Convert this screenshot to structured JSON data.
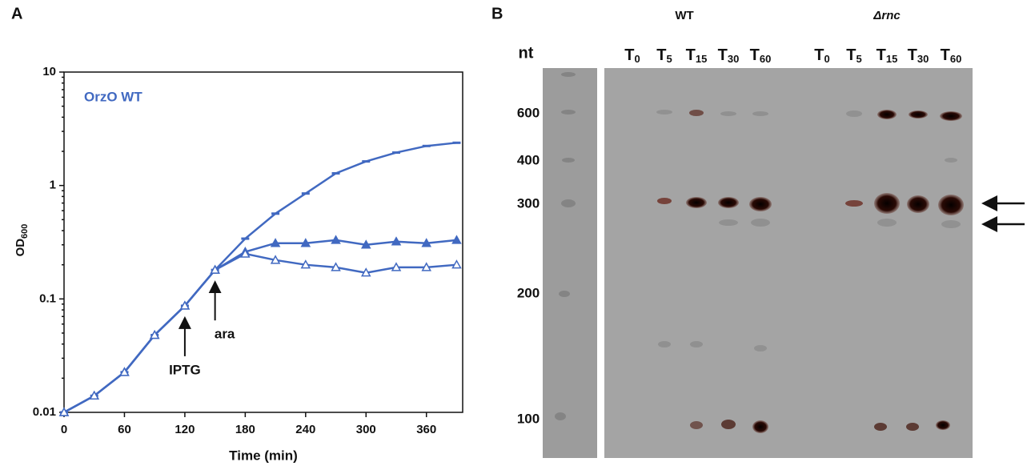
{
  "panel_labels": [
    "A",
    "B"
  ],
  "chart_data": {
    "type": "line",
    "log_y": true,
    "annotation": "OrzO WT",
    "xlabel": "Time (min)",
    "ylabel": "OD",
    "ylabel_subscript": "600",
    "x": [
      0,
      30,
      60,
      90,
      120,
      150,
      180,
      210,
      240,
      270,
      300,
      330,
      360,
      390
    ],
    "series": [
      {
        "color": "#4169c1",
        "marker": "dash",
        "values": [
          0.01,
          0.014,
          0.0226,
          0.048,
          0.087,
          0.18,
          0.34,
          0.565,
          0.85,
          1.28,
          1.63,
          1.95,
          2.23,
          2.38
        ]
      },
      {
        "color": "#4169c1",
        "marker": "triangle",
        "values": [
          0.01,
          0.014,
          0.0226,
          0.048,
          0.087,
          0.18,
          0.26,
          0.31,
          0.31,
          0.33,
          0.3,
          0.32,
          0.31,
          0.33
        ]
      },
      {
        "color": "#4169c1",
        "marker": "open-triangle",
        "values": [
          0.01,
          0.014,
          0.0226,
          0.048,
          0.087,
          0.18,
          0.25,
          0.22,
          0.2,
          0.19,
          0.17,
          0.19,
          0.19,
          0.2
        ]
      }
    ],
    "arrows": [
      {
        "text": "IPTG",
        "x": 120
      },
      {
        "text": "ara",
        "x": 150
      }
    ],
    "xlim": [
      0,
      396
    ],
    "xticks": [
      0,
      60,
      120,
      180,
      240,
      300,
      360
    ],
    "ylim": [
      0.01,
      10
    ],
    "yticks": [
      0.01,
      0.1,
      1,
      10
    ]
  },
  "gel": {
    "unit": "nt",
    "groups": [
      "WT",
      "Δrnc"
    ],
    "lanes": [
      [
        {
          "main": "T",
          "sub": "0"
        },
        {
          "main": "T",
          "sub": "5"
        },
        {
          "main": "T",
          "sub": "15"
        },
        {
          "main": "T",
          "sub": "30"
        },
        {
          "main": "T",
          "sub": "60"
        }
      ],
      [
        {
          "main": "T",
          "sub": "0"
        },
        {
          "main": "T",
          "sub": "5"
        },
        {
          "main": "T",
          "sub": "15"
        },
        {
          "main": "T",
          "sub": "30"
        },
        {
          "main": "T",
          "sub": "60"
        }
      ]
    ],
    "size_markers": [
      600,
      400,
      300,
      200,
      100
    ]
  }
}
